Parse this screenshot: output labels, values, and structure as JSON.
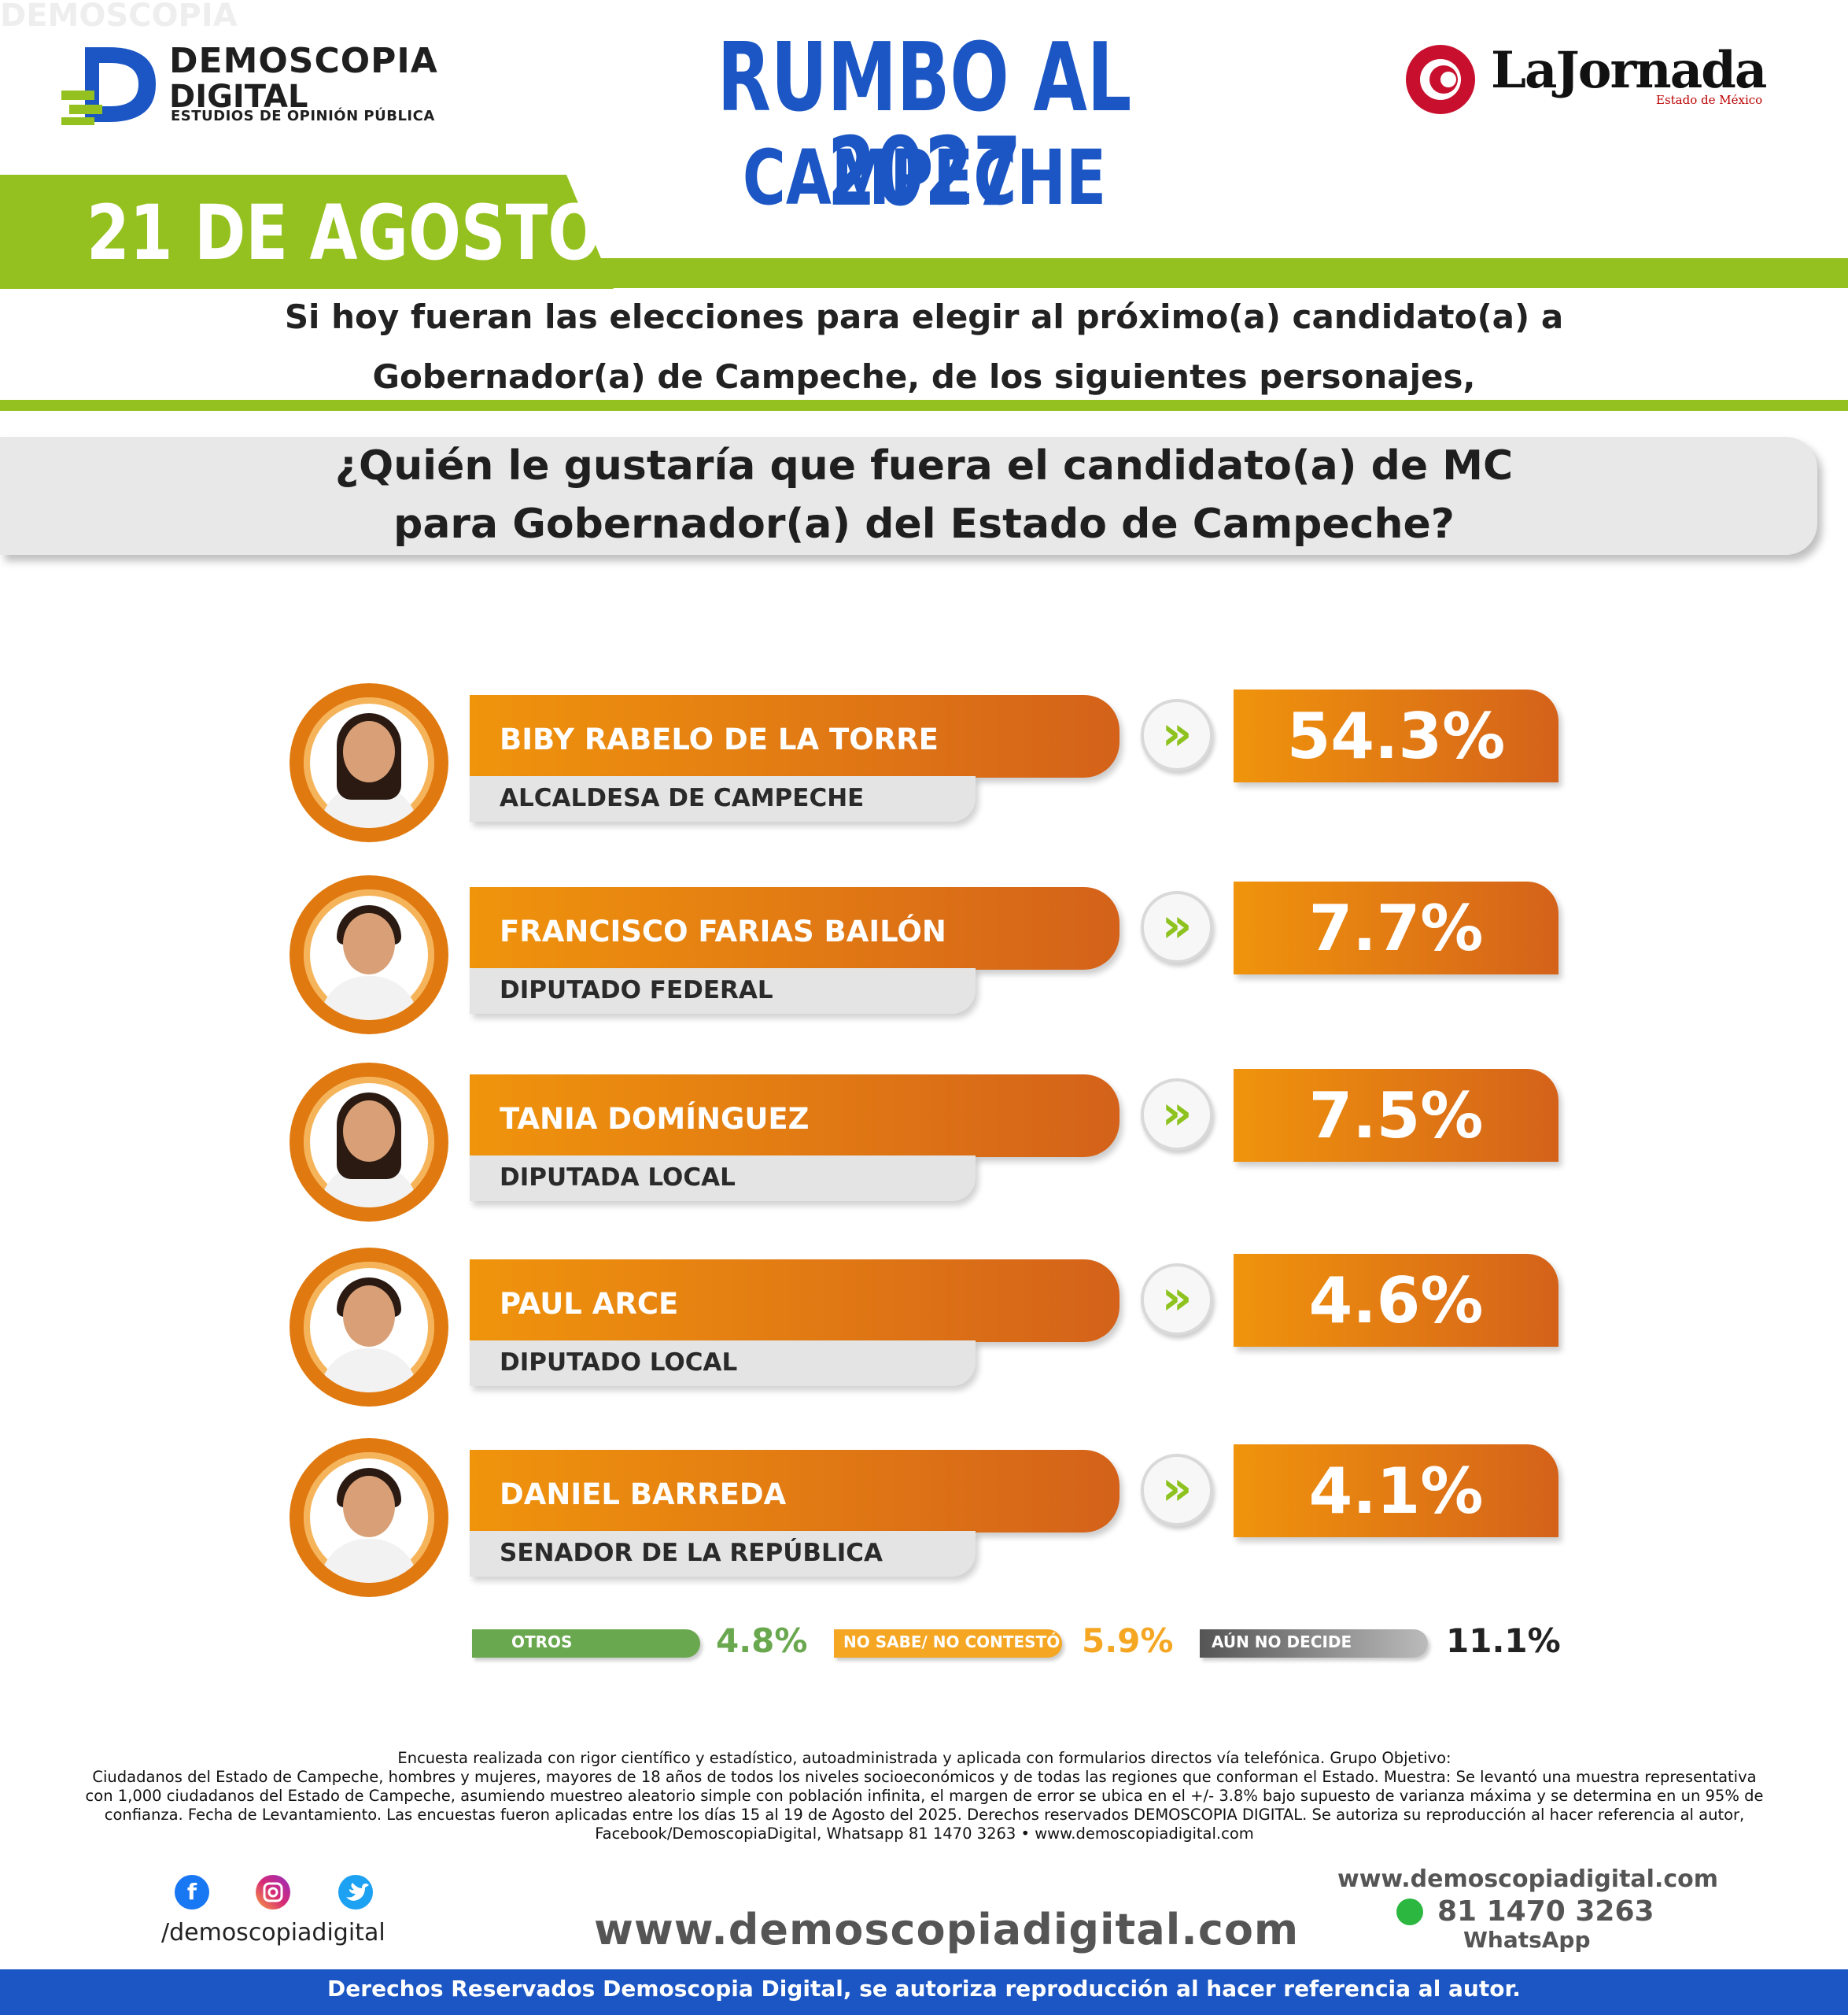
{
  "brand": {
    "line1": "DEMOSCOPIA",
    "line2": "DIGITAL",
    "line3": "ESTUDIOS DE OPINIÓN PÚBLICA"
  },
  "header": {
    "title": "RUMBO AL 2027",
    "subtitle": "CAMPECHE",
    "date": "21 DE AGOSTO",
    "partner": "LaJornada",
    "partner_sub": "Estado de México"
  },
  "question": {
    "intro_line1": "Si hoy fueran las elecciones para elegir al próximo(a) candidato(a) a",
    "intro_line2": "Gobernador(a) de Campeche, de los siguientes personajes,",
    "main_line1": "¿Quién le gustaría que fuera el candidato(a) de MC",
    "main_line2": "para Gobernador(a) del Estado de Campeche?"
  },
  "chart_data": {
    "type": "table",
    "candidates": [
      {
        "name": "BIBY RABELO DE LA TORRE",
        "role": "ALCALDESA DE CAMPECHE",
        "value": 54.3,
        "label": "54.3%"
      },
      {
        "name": "FRANCISCO FARIAS BAILÓN",
        "role": "DIPUTADO FEDERAL",
        "value": 7.7,
        "label": "7.7%"
      },
      {
        "name": "TANIA DOMÍNGUEZ",
        "role": "DIPUTADA LOCAL",
        "value": 7.5,
        "label": "7.5%"
      },
      {
        "name": "PAUL ARCE",
        "role": "DIPUTADO LOCAL",
        "value": 4.6,
        "label": "4.6%"
      },
      {
        "name": "DANIEL BARREDA",
        "role": "SENADOR DE LA REPÚBLICA",
        "value": 4.1,
        "label": "4.1%"
      }
    ],
    "others": [
      {
        "name": "OTROS",
        "value": 4.8,
        "label": "4.8%",
        "color": "#6aa84f"
      },
      {
        "name": "NO SABE/ NO CONTESTÓ",
        "value": 5.9,
        "label": "5.9%",
        "color": "#f5a623"
      },
      {
        "name": "AÚN NO DECIDE",
        "value": 11.1,
        "label": "11.1%",
        "color": "#8a8a8a"
      }
    ]
  },
  "colors": {
    "blue": "#1b56c4",
    "green": "#94c11f",
    "orange": "#e07a10"
  },
  "footer": {
    "methodology_line1": "Encuesta realizada con rigor científico y estadístico, autoadministrada y aplicada con formularios directos vía telefónica. Grupo Objetivo:",
    "methodology_line2": "Ciudadanos del Estado de Campeche, hombres y mujeres, mayores de 18 años de todos los niveles socioeconómicos y de todas las regiones que conforman el Estado. Muestra: Se levantó una muestra representativa",
    "methodology_line3": "con 1,000 ciudadanos del Estado de Campeche, asumiendo muestreo aleatorio simple con población infinita, el margen de error se ubica en el +/- 3.8% bajo supuesto de varianza máxima y se determina en un 95% de",
    "methodology_line4": "confianza. Fecha de Levantamiento. Las encuestas fueron aplicadas entre los días 15 al 19 de Agosto del 2025. Derechos reservados DEMOSCOPIA DIGITAL. Se autoriza su reproducción al hacer referencia al autor,",
    "methodology_line5": "Facebook/DemoscopiaDigital, Whatsapp 81 1470 3263 • www.demoscopiadigital.com",
    "social_handle": "/demoscopiadigital",
    "url_big": "www.demoscopiadigital.com",
    "url_small": "www.demoscopiadigital.com",
    "phone": "81 1470 3263",
    "phone_label": "WhatsApp",
    "rights": "Derechos Reservados Demoscopia Digital, se autoriza reproducción al hacer referencia al autor."
  }
}
